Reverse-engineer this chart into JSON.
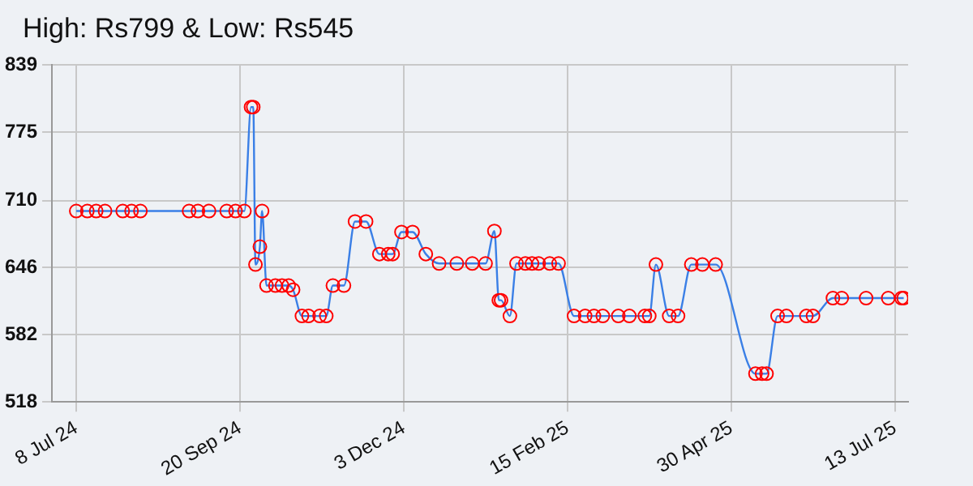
{
  "chart_data": {
    "type": "line",
    "title": "High: Rs799 & Low: Rs545",
    "x": [
      "2024-07-08",
      "2024-07-13",
      "2024-07-17",
      "2024-07-21",
      "2024-07-29",
      "2024-08-02",
      "2024-08-06",
      "2024-08-28",
      "2024-09-01",
      "2024-09-06",
      "2024-09-14",
      "2024-09-18",
      "2024-09-22",
      "2024-09-25",
      "2024-09-26",
      "2024-09-27",
      "2024-09-29",
      "2024-09-30",
      "2024-10-02",
      "2024-10-06",
      "2024-10-09",
      "2024-10-12",
      "2024-10-14",
      "2024-10-18",
      "2024-10-21",
      "2024-10-26",
      "2024-10-29",
      "2024-11-01",
      "2024-11-06",
      "2024-11-11",
      "2024-11-16",
      "2024-11-22",
      "2024-11-26",
      "2024-11-28",
      "2024-12-02",
      "2024-12-07",
      "2024-12-13",
      "2024-12-19",
      "2024-12-27",
      "2025-01-03",
      "2025-01-09",
      "2025-01-13",
      "2025-01-15",
      "2025-01-16",
      "2025-01-20",
      "2025-01-23",
      "2025-01-27",
      "2025-01-30",
      "2025-02-02",
      "2025-02-07",
      "2025-02-11",
      "2025-02-18",
      "2025-02-23",
      "2025-02-27",
      "2025-03-03",
      "2025-03-10",
      "2025-03-15",
      "2025-03-22",
      "2025-03-24",
      "2025-03-27",
      "2025-04-02",
      "2025-04-06",
      "2025-04-12",
      "2025-04-17",
      "2025-04-23",
      "2025-05-11",
      "2025-05-14",
      "2025-05-16",
      "2025-05-21",
      "2025-05-25",
      "2025-06-03",
      "2025-06-06",
      "2025-06-15",
      "2025-06-19",
      "2025-06-30",
      "2025-07-10",
      "2025-07-16",
      "2025-07-17"
    ],
    "series": [
      {
        "color": "#3a7fe6",
        "values": [
          700,
          700,
          700,
          700,
          700,
          700,
          700,
          700,
          700,
          700,
          700,
          700,
          700,
          799,
          799,
          649,
          666,
          700,
          629,
          629,
          629,
          629,
          625,
          600,
          600,
          600,
          600,
          629,
          629,
          690,
          690,
          659,
          659,
          659,
          680,
          680,
          659,
          650,
          650,
          650,
          650,
          681,
          615,
          615,
          600,
          650,
          650,
          650,
          650,
          650,
          650,
          600,
          600,
          600,
          600,
          600,
          600,
          600,
          600,
          649,
          600,
          600,
          649,
          649,
          649,
          545,
          545,
          545,
          600,
          600,
          600,
          600,
          617,
          617,
          617,
          617,
          617,
          617
        ]
      }
    ],
    "ylim": [
      518,
      839
    ],
    "yticks": [
      518,
      582,
      646,
      710,
      775,
      839
    ],
    "xlim": [
      "2024-06-27",
      "2025-07-19"
    ],
    "xticks": [
      {
        "value": "2024-07-08",
        "label": "8 Jul 24"
      },
      {
        "value": "2024-09-20",
        "label": "20 Sep 24"
      },
      {
        "value": "2024-12-03",
        "label": "3 Dec 24"
      },
      {
        "value": "2025-02-15",
        "label": "15 Feb 25"
      },
      {
        "value": "2025-04-30",
        "label": "30 Apr 25"
      },
      {
        "value": "2025-07-13",
        "label": "13 Jul 25"
      }
    ],
    "grid": true,
    "marker": "circle",
    "line_style": "solid"
  }
}
